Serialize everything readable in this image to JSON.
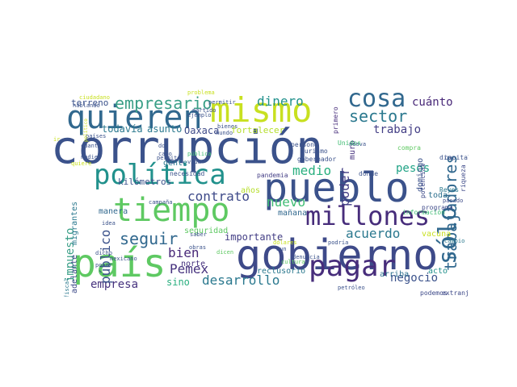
{
  "words": [
    {
      "text": "corrupción",
      "color": "#3b528b"
    },
    {
      "text": "gobierno",
      "color": "#3e4a89"
    },
    {
      "text": "pueblo",
      "color": "#3b528b"
    },
    {
      "text": "tiempo",
      "color": "#5ec962"
    },
    {
      "text": "país",
      "color": "#5ec962"
    },
    {
      "text": "mismo",
      "color": "#c8e020"
    },
    {
      "text": "quieren",
      "color": "#31688e"
    },
    {
      "text": "política",
      "color": "#21918c"
    },
    {
      "text": "millones",
      "color": "#472d7b"
    },
    {
      "text": "pagar",
      "color": "#472d7b"
    },
    {
      "text": "cosa",
      "color": "#31688e"
    },
    {
      "text": "sólo",
      "color": "#31688e"
    },
    {
      "text": "trabajadores",
      "color": "#31688e"
    },
    {
      "text": "empresario",
      "color": "#3a9f87"
    },
    {
      "text": "dinero",
      "color": "#21918c"
    },
    {
      "text": "cuánto",
      "color": "#482878"
    },
    {
      "text": "seguir",
      "color": "#31688e"
    },
    {
      "text": "contrato",
      "color": "#3e4a89"
    },
    {
      "text": "acuerdo",
      "color": "#2a788e"
    },
    {
      "text": "nuevo",
      "color": "#3fbc73"
    },
    {
      "text": "negocio",
      "color": "#3b528b"
    },
    {
      "text": "desarrollo",
      "color": "#2a788e"
    },
    {
      "text": "bien",
      "color": "#482878"
    },
    {
      "text": "Pemex",
      "color": "#46327e"
    },
    {
      "text": "empresa",
      "color": "#46327e"
    },
    {
      "text": "sector",
      "color": "#2a788e"
    },
    {
      "text": "medio",
      "color": "#29af7f"
    },
    {
      "text": "trabajo",
      "color": "#433e85"
    },
    {
      "text": "pesos",
      "color": "#20a386"
    },
    {
      "text": "poder",
      "color": "#433e85"
    },
    {
      "text": "impuesto",
      "color": "#3a9f87"
    },
    {
      "text": "público",
      "color": "#3b528b"
    },
    {
      "text": "importante",
      "color": "#433e85"
    },
    {
      "text": "todavía",
      "color": "#2a788e"
    },
    {
      "text": "asunto",
      "color": "#2a788e"
    },
    {
      "text": "Oaxaca",
      "color": "#3e4a89"
    },
    {
      "text": "terreno",
      "color": "#3b528b"
    },
    {
      "text": "muro",
      "color": "#46327e"
    },
    {
      "text": "domingo",
      "color": "#3b528b"
    },
    {
      "text": "fortalecer",
      "color": "#b5de2b"
    },
    {
      "text": "kilómetros",
      "color": "#3b528b"
    },
    {
      "text": "años",
      "color": "#b5de2b"
    },
    {
      "text": "mañana",
      "color": "#31688e"
    },
    {
      "text": "seguridad",
      "color": "#5ec962"
    },
    {
      "text": "toda",
      "color": "#2d708e"
    },
    {
      "text": "vacuna",
      "color": "#c8e020"
    },
    {
      "text": "reclusorio",
      "color": "#2a788e"
    },
    {
      "text": "arriba",
      "color": "#2d708e"
    },
    {
      "text": "acto",
      "color": "#21918c"
    },
    {
      "text": "sino",
      "color": "#29af7f"
    },
    {
      "text": "norte",
      "color": "#46327e"
    },
    {
      "text": "gente",
      "color": "#2a788e"
    },
    {
      "text": "manera",
      "color": "#31688e"
    },
    {
      "text": "migrantes",
      "color": "#2a788e"
    },
    {
      "text": "adelante",
      "color": "#3e4a89"
    },
    {
      "text": "programa",
      "color": "#3e4a89"
    },
    {
      "text": "podemos",
      "color": "#3e4a89"
    },
    {
      "text": "extranjero",
      "color": "#3e4a89"
    },
    {
      "text": "pandemia",
      "color": "#433e85"
    },
    {
      "text": "necesidad",
      "color": "#3b528b"
    },
    {
      "text": "dónde",
      "color": "#3b528b"
    },
    {
      "text": "información",
      "color": "#3fbc73"
    },
    {
      "text": "Reyes",
      "color": "#2a788e"
    },
    {
      "text": "riqueza",
      "color": "#3e4a89"
    },
    {
      "text": "potencial",
      "color": "#3e4a89"
    },
    {
      "text": "compra",
      "color": "#5ec962"
    },
    {
      "text": "dio",
      "color": "#3b528b"
    },
    {
      "text": "capital",
      "color": "#3b528b"
    },
    {
      "text": "pasado",
      "color": "#3e4a89"
    },
    {
      "text": "cambio",
      "color": "#2a788e"
    },
    {
      "text": "nueva",
      "color": "#3b528b"
    },
    {
      "text": "turismo",
      "color": "#3b528b"
    },
    {
      "text": "gobernador",
      "color": "#3b528b"
    },
    {
      "text": "persone",
      "color": "#3b528b"
    },
    {
      "text": "primero",
      "color": "#472d7b"
    },
    {
      "text": "Unidos",
      "color": "#3fbc73"
    },
    {
      "text": "bienes",
      "color": "#3b528b"
    },
    {
      "text": "mundo",
      "color": "#3b528b"
    },
    {
      "text": "ciudadano",
      "color": "#c8e020"
    },
    {
      "text": "hablando",
      "color": "#3b528b"
    },
    {
      "text": "partido",
      "color": "#3b528b"
    },
    {
      "text": "problema",
      "color": "#c8e020"
    },
    {
      "text": "permitir",
      "color": "#3b528b"
    },
    {
      "text": "ejemplo",
      "color": "#3b528b"
    },
    {
      "text": "países",
      "color": "#3b528b"
    },
    {
      "text": "cuanto",
      "color": "#3b528b"
    },
    {
      "text": "nadie",
      "color": "#3b528b"
    },
    {
      "text": "quiere",
      "color": "#c8e020"
    },
    {
      "text": "político",
      "color": "#c8e020"
    },
    {
      "text": "don",
      "color": "#3b528b"
    },
    {
      "text": "cabo",
      "color": "#3b528b"
    },
    {
      "text": "permite",
      "color": "#3b528b"
    },
    {
      "text": "pública",
      "color": "#3fbc73"
    },
    {
      "text": "vida",
      "color": "#3b528b"
    },
    {
      "text": "campaña",
      "color": "#3b528b"
    },
    {
      "text": "idea",
      "color": "#3b528b"
    },
    {
      "text": "saber",
      "color": "#3b528b"
    },
    {
      "text": "obras",
      "color": "#3b528b"
    },
    {
      "text": "dicho",
      "color": "#3b528b"
    },
    {
      "text": "dicen",
      "color": "#5ec962"
    },
    {
      "text": "mexicano",
      "color": "#3b528b"
    },
    {
      "text": "poner",
      "color": "#3b528b"
    },
    {
      "text": "fiscal",
      "color": "#2a788e"
    },
    {
      "text": "dólares",
      "color": "#c8e020"
    },
    {
      "text": "aun",
      "color": "#3b528b"
    },
    {
      "text": "denuncia",
      "color": "#3b528b"
    },
    {
      "text": "podría",
      "color": "#3b528b"
    },
    {
      "text": "cultura",
      "color": "#5ec962"
    },
    {
      "text": "petróleo",
      "color": "#3b528b"
    },
    {
      "text": "ir",
      "color": "#c8e020"
    }
  ]
}
